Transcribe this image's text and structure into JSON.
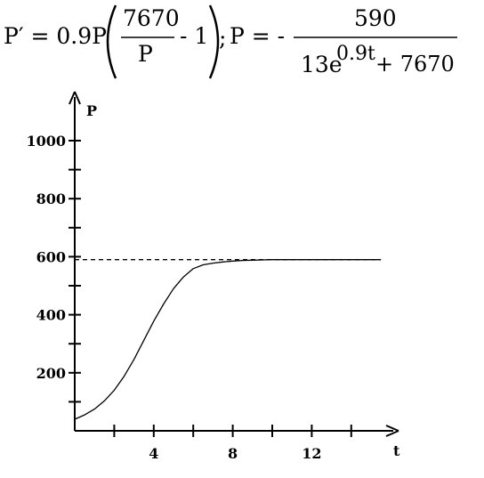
{
  "equation": {
    "lhs": "P′ = 0.9P",
    "inner_numerator": "7670",
    "inner_denominator": "P",
    "inner_minus_one": "-  1",
    "separator": ";",
    "solution_lhs": "P = -",
    "solution_numerator": "590",
    "solution_denominator_prefix": "13e",
    "solution_exponent": "0.9t",
    "solution_denominator_suffix": "+ 7670"
  },
  "chart_data": {
    "type": "line",
    "title": "",
    "xlabel": "t",
    "ylabel": "P",
    "xlim": [
      0,
      16
    ],
    "ylim": [
      0,
      1100
    ],
    "x_ticks": [
      4,
      8,
      12
    ],
    "y_ticks": [
      200,
      400,
      600,
      800,
      1000
    ],
    "x_minor_ticks": [
      2,
      6,
      10,
      14
    ],
    "y_minor_ticks": [
      100,
      300,
      500,
      700,
      900
    ],
    "series": [
      {
        "style": "solid",
        "x": [
          0,
          0.5,
          1,
          1.5,
          2,
          2.5,
          3,
          3.5,
          4,
          4.5,
          5,
          5.5,
          6,
          6.5,
          7,
          7.5,
          8,
          8.5,
          9,
          9.5,
          10,
          11,
          12,
          13,
          14,
          15.5
        ],
        "y": [
          40,
          55,
          75,
          103,
          140,
          188,
          246,
          312,
          378,
          437,
          490,
          530,
          559,
          572,
          578,
          582,
          585,
          587,
          588,
          589,
          590,
          590,
          590,
          590,
          590,
          590
        ]
      },
      {
        "style": "dashed",
        "x": [
          0,
          15.5
        ],
        "y": [
          590,
          590
        ]
      }
    ],
    "grid": false,
    "legend": "none"
  }
}
